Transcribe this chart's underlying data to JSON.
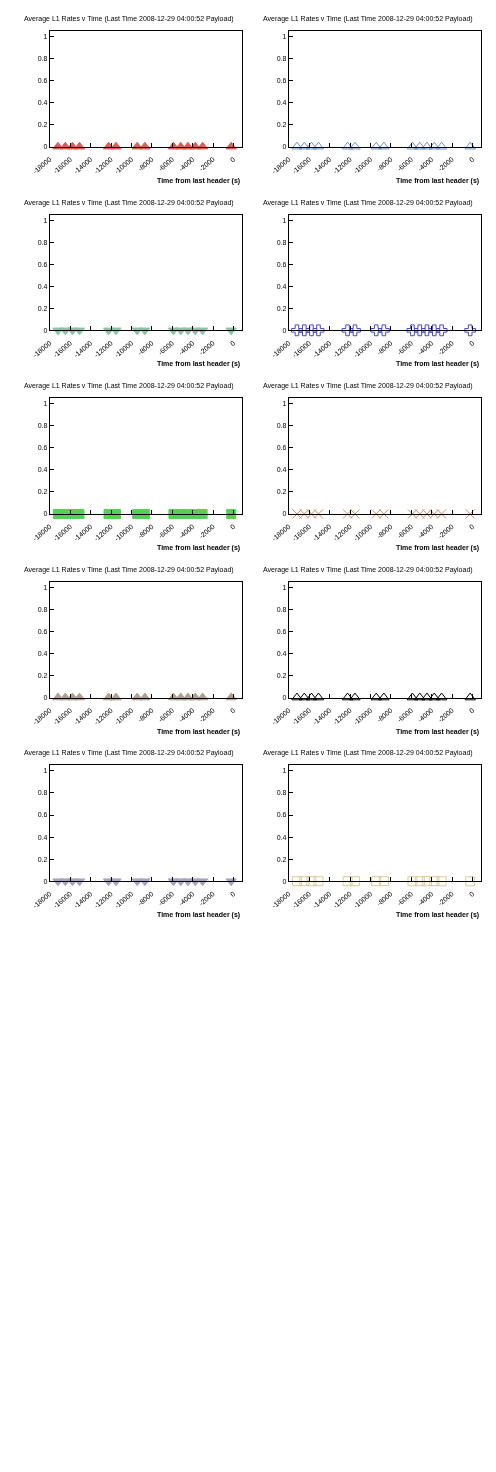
{
  "chart_data": [
    {
      "type": "scatter",
      "title": "Average L1 Rates v Time (Last Time 2008-12-29 04:00:52 Payload)",
      "xlabel": "Time from last header (s)",
      "x": [
        -17200,
        -16480,
        -15780,
        -15090,
        -12240,
        -11510,
        -9430,
        -8680,
        -5880,
        -5160,
        -4460,
        -3740,
        -3020,
        -220
      ],
      "series": [
        {
          "color": "#d9605a",
          "values": [
            0,
            0,
            0,
            0,
            0,
            0,
            0,
            0,
            0,
            0,
            0,
            0,
            0,
            0
          ]
        }
      ],
      "marker": "triangle-up",
      "xlim": [
        -18000,
        800
      ],
      "xticks": [
        -18000,
        -16000,
        -14000,
        -12000,
        -10000,
        -8000,
        -6000,
        -4000,
        -2000,
        0
      ],
      "ylim": [
        0,
        1.05
      ],
      "yticks": [
        0,
        0.2,
        0.4,
        0.6,
        0.8,
        1
      ]
    },
    {
      "type": "scatter",
      "title": "Average L1 Rates v Time (Last Time 2008-12-29 04:00:52 Payload)",
      "xlabel": "Time from last header (s)",
      "x": [
        -17200,
        -16480,
        -15780,
        -15090,
        -12240,
        -11510,
        -9430,
        -8680,
        -5880,
        -5160,
        -4460,
        -3740,
        -3020,
        -220
      ],
      "series": [
        {
          "color": "#6a8fd0",
          "values": [
            0,
            0,
            0,
            0,
            0,
            0,
            0,
            0,
            0,
            0,
            0,
            0,
            0,
            0
          ]
        }
      ],
      "marker": "triangle-up-open",
      "xlim": [
        -18000,
        800
      ],
      "xticks": [
        -18000,
        -16000,
        -14000,
        -12000,
        -10000,
        -8000,
        -6000,
        -4000,
        -2000,
        0
      ],
      "ylim": [
        0,
        1.05
      ],
      "yticks": [
        0,
        0.2,
        0.4,
        0.6,
        0.8,
        1
      ]
    },
    {
      "type": "scatter",
      "title": "Average L1 Rates v Time (Last Time 2008-12-29 04:00:52 Payload)",
      "xlabel": "Time from last header (s)",
      "x": [
        -17200,
        -16480,
        -15780,
        -15090,
        -12240,
        -11510,
        -9430,
        -8680,
        -5880,
        -5160,
        -4460,
        -3740,
        -3020,
        -220
      ],
      "series": [
        {
          "color": "#88c4a6",
          "values": [
            0,
            0,
            0,
            0,
            0,
            0,
            0,
            0,
            0,
            0,
            0,
            0,
            0,
            0
          ]
        }
      ],
      "marker": "triangle-down",
      "xlim": [
        -18000,
        800
      ],
      "xticks": [
        -18000,
        -16000,
        -14000,
        -12000,
        -10000,
        -8000,
        -6000,
        -4000,
        -2000,
        0
      ],
      "ylim": [
        0,
        1.05
      ],
      "yticks": [
        0,
        0.2,
        0.4,
        0.6,
        0.8,
        1
      ]
    },
    {
      "type": "scatter",
      "title": "Average L1 Rates v Time (Last Time 2008-12-29 04:00:52 Payload)",
      "xlabel": "Time from last header (s)",
      "x": [
        -17200,
        -16480,
        -15780,
        -15090,
        -12240,
        -11510,
        -9430,
        -8680,
        -5880,
        -5160,
        -4460,
        -3740,
        -3020,
        -220
      ],
      "series": [
        {
          "color": "#4848cc",
          "values": [
            0,
            0,
            0,
            0,
            0,
            0,
            0,
            0,
            0,
            0,
            0,
            0,
            0,
            0
          ]
        }
      ],
      "marker": "cross-open",
      "xlim": [
        -18000,
        800
      ],
      "xticks": [
        -18000,
        -16000,
        -14000,
        -12000,
        -10000,
        -8000,
        -6000,
        -4000,
        -2000,
        0
      ],
      "ylim": [
        0,
        1.05
      ],
      "yticks": [
        0,
        0.2,
        0.4,
        0.6,
        0.8,
        1
      ]
    },
    {
      "type": "scatter",
      "title": "Average L1 Rates v Time (Last Time 2008-12-29 04:00:52 Payload)",
      "xlabel": "Time from last header (s)",
      "x": [
        -17200,
        -16480,
        -15780,
        -15090,
        -12240,
        -11510,
        -9430,
        -8680,
        -5880,
        -5160,
        -4460,
        -3740,
        -3020,
        -220
      ],
      "series": [
        {
          "color": "#55d055",
          "values": [
            0,
            0,
            0,
            0,
            0,
            0,
            0,
            0,
            0,
            0,
            0,
            0,
            0,
            0
          ]
        }
      ],
      "marker": "square",
      "xlim": [
        -18000,
        800
      ],
      "xticks": [
        -18000,
        -16000,
        -14000,
        -12000,
        -10000,
        -8000,
        -6000,
        -4000,
        -2000,
        0
      ],
      "ylim": [
        0,
        1.05
      ],
      "yticks": [
        0,
        0.2,
        0.4,
        0.6,
        0.8,
        1
      ]
    },
    {
      "type": "scatter",
      "title": "Average L1 Rates v Time (Last Time 2008-12-29 04:00:52 Payload)",
      "xlabel": "Time from last header (s)",
      "x": [
        -17200,
        -16480,
        -15780,
        -15090,
        -12240,
        -11510,
        -9430,
        -8680,
        -5880,
        -5160,
        -4460,
        -3740,
        -3020,
        -220
      ],
      "series": [
        {
          "color": "#d08c60",
          "values": [
            0,
            0,
            0,
            0,
            0,
            0,
            0,
            0,
            0,
            0,
            0,
            0,
            0,
            0
          ]
        }
      ],
      "marker": "cross",
      "xlim": [
        -18000,
        800
      ],
      "xticks": [
        -18000,
        -16000,
        -14000,
        -12000,
        -10000,
        -8000,
        -6000,
        -4000,
        -2000,
        0
      ],
      "ylim": [
        0,
        1.05
      ],
      "yticks": [
        0,
        0.2,
        0.4,
        0.6,
        0.8,
        1
      ]
    },
    {
      "type": "scatter",
      "title": "Average L1 Rates v Time (Last Time 2008-12-29 04:00:52 Payload)",
      "xlabel": "Time from last header (s)",
      "x": [
        -17200,
        -16480,
        -15780,
        -15090,
        -12240,
        -11510,
        -9430,
        -8680,
        -5880,
        -5160,
        -4460,
        -3740,
        -3020,
        -220
      ],
      "series": [
        {
          "color": "#b0a090",
          "values": [
            0,
            0,
            0,
            0,
            0,
            0,
            0,
            0,
            0,
            0,
            0,
            0,
            0,
            0
          ]
        }
      ],
      "marker": "triangle-up",
      "xlim": [
        -18000,
        800
      ],
      "xticks": [
        -18000,
        -16000,
        -14000,
        -12000,
        -10000,
        -8000,
        -6000,
        -4000,
        -2000,
        0
      ],
      "ylim": [
        0,
        1.05
      ],
      "yticks": [
        0,
        0.2,
        0.4,
        0.6,
        0.8,
        1
      ]
    },
    {
      "type": "scatter",
      "title": "Average L1 Rates v Time (Last Time 2008-12-29 04:00:52 Payload)",
      "xlabel": "Time from last header (s)",
      "x": [
        -17200,
        -16480,
        -15780,
        -15090,
        -12240,
        -11510,
        -9430,
        -8680,
        -5880,
        -5160,
        -4460,
        -3740,
        -3020,
        -220
      ],
      "series": [
        {
          "color": "#000000",
          "values": [
            0,
            0,
            0,
            0,
            0,
            0,
            0,
            0,
            0,
            0,
            0,
            0,
            0,
            0
          ]
        }
      ],
      "marker": "triangle-up-open",
      "xlim": [
        -18000,
        800
      ],
      "xticks": [
        -18000,
        -16000,
        -14000,
        -12000,
        -10000,
        -8000,
        -6000,
        -4000,
        -2000,
        0
      ],
      "ylim": [
        0,
        1.05
      ],
      "yticks": [
        0,
        0.2,
        0.4,
        0.6,
        0.8,
        1
      ]
    },
    {
      "type": "scatter",
      "title": "Average L1 Rates v Time (Last Time 2008-12-29 04:00:52 Payload)",
      "xlabel": "Time from last header (s)",
      "x": [
        -17200,
        -16480,
        -15780,
        -15090,
        -12240,
        -11510,
        -9430,
        -8680,
        -5880,
        -5160,
        -4460,
        -3740,
        -3020,
        -220
      ],
      "series": [
        {
          "color": "#a8a4c0",
          "values": [
            0,
            0,
            0,
            0,
            0,
            0,
            0,
            0,
            0,
            0,
            0,
            0,
            0,
            0
          ]
        }
      ],
      "marker": "triangle-down",
      "xlim": [
        -18000,
        800
      ],
      "xticks": [
        -18000,
        -16000,
        -14000,
        -12000,
        -10000,
        -8000,
        -6000,
        -4000,
        -2000,
        0
      ],
      "ylim": [
        0,
        1.05
      ],
      "yticks": [
        0,
        0.2,
        0.4,
        0.6,
        0.8,
        1
      ]
    },
    {
      "type": "scatter",
      "title": "Average L1 Rates v Time (Last Time 2008-12-29 04:00:52 Payload)",
      "xlabel": "Time from last header (s)",
      "x": [
        -17200,
        -16480,
        -15780,
        -15090,
        -12240,
        -11510,
        -9430,
        -8680,
        -5880,
        -5160,
        -4460,
        -3740,
        -3020,
        -220
      ],
      "series": [
        {
          "color": "#d8cc98",
          "values": [
            0,
            0,
            0,
            0,
            0,
            0,
            0,
            0,
            0,
            0,
            0,
            0,
            0,
            0
          ]
        }
      ],
      "marker": "square-open",
      "xlim": [
        -18000,
        800
      ],
      "xticks": [
        -18000,
        -16000,
        -14000,
        -12000,
        -10000,
        -8000,
        -6000,
        -4000,
        -2000,
        0
      ],
      "ylim": [
        0,
        1.05
      ],
      "yticks": [
        0,
        0.2,
        0.4,
        0.6,
        0.8,
        1
      ]
    }
  ]
}
